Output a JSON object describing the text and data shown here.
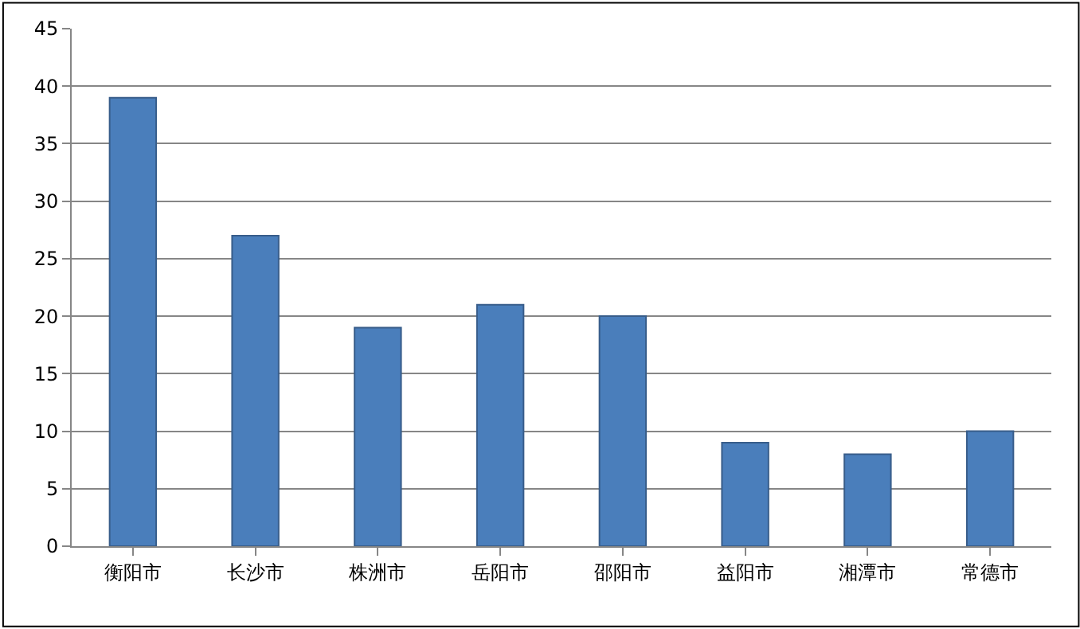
{
  "chart_data": {
    "type": "bar",
    "categories": [
      "衡阳市",
      "长沙市",
      "株洲市",
      "岳阳市",
      "邵阳市",
      "益阳市",
      "湘潭市",
      "常德市"
    ],
    "values": [
      39,
      27,
      19,
      21,
      20,
      9,
      8,
      10
    ],
    "color": "#4a7ebb",
    "ylim": [
      0,
      45
    ],
    "yticks": [
      0,
      5,
      10,
      15,
      20,
      25,
      30,
      35,
      40,
      45
    ],
    "grid": "y"
  }
}
